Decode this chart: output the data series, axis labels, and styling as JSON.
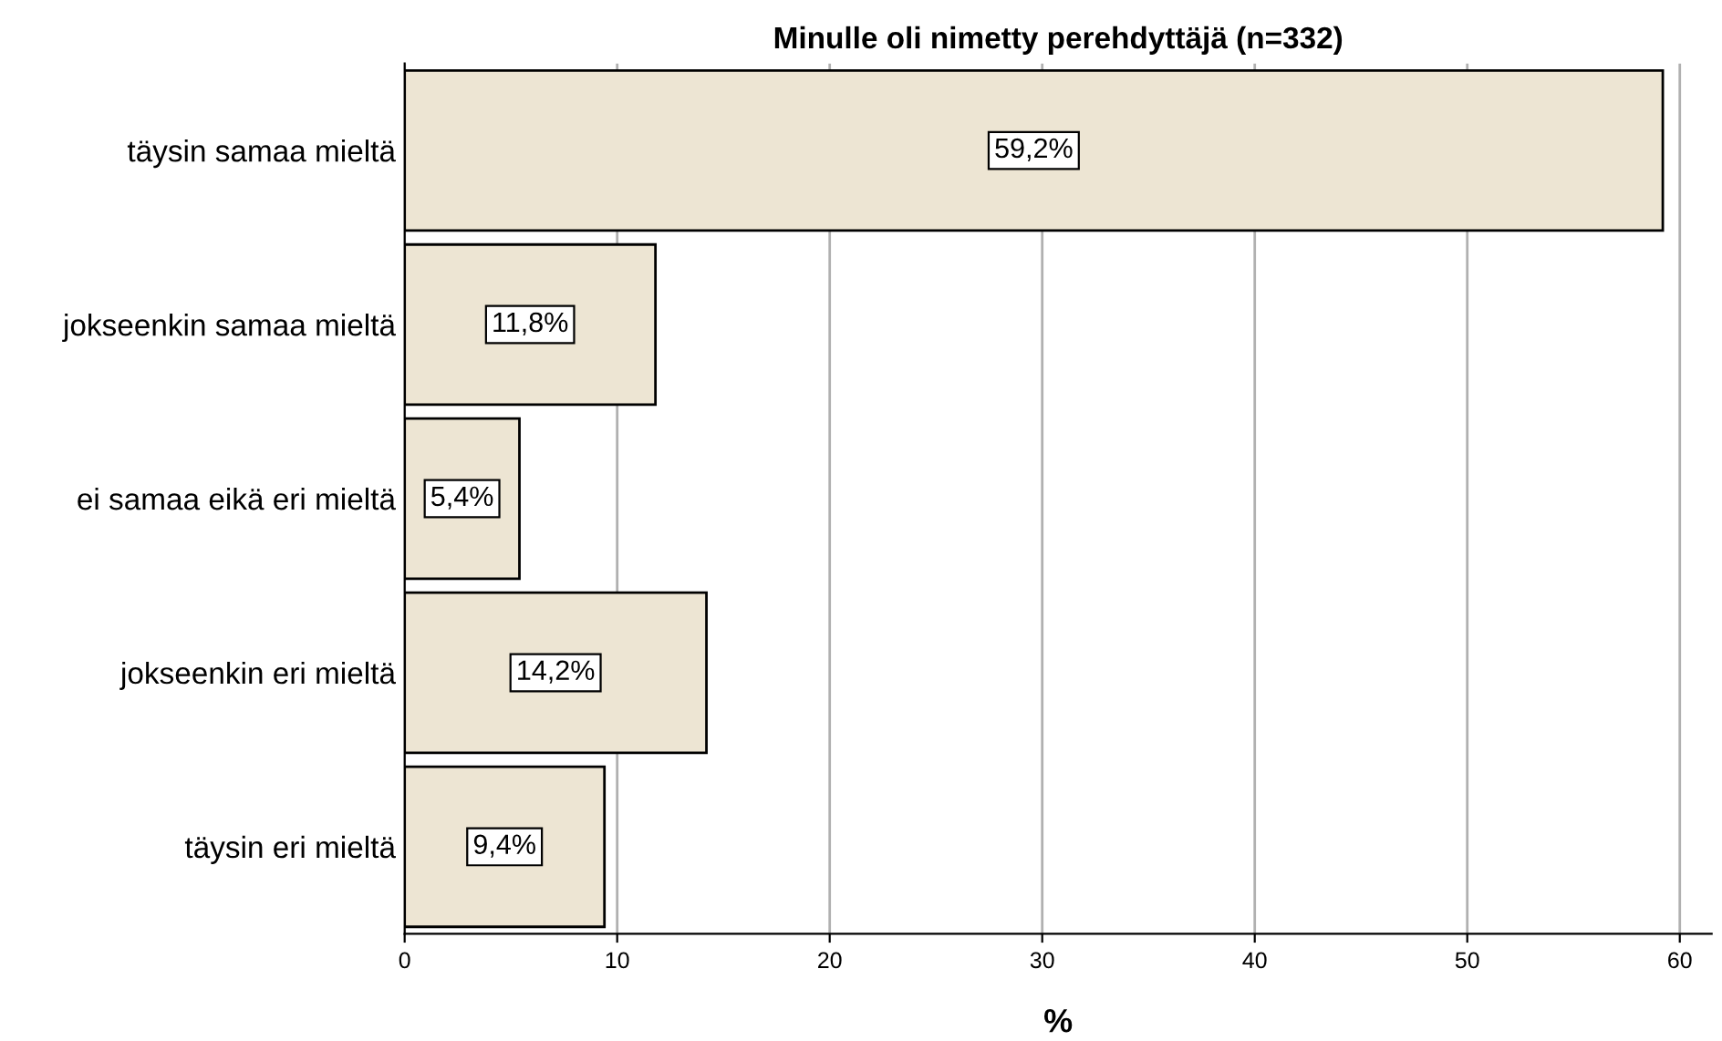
{
  "chart_data": {
    "type": "bar",
    "orientation": "horizontal",
    "title": "Minulle oli nimetty perehdyttäjä (n=332)",
    "xlabel": "%",
    "categories": [
      "täysin samaa mieltä",
      "jokseenkin samaa mieltä",
      "ei samaa eikä eri mieltä",
      "jokseenkin eri mieltä",
      "täysin eri mieltä"
    ],
    "values": [
      59.2,
      11.8,
      5.4,
      14.2,
      9.4
    ],
    "value_labels": [
      "59,2%",
      "11,8%",
      "5,4%",
      "14,2%",
      "9,4%"
    ],
    "color": "#ede5d3",
    "xlim": [
      0,
      61.5
    ],
    "xticks": [
      0,
      10,
      20,
      30,
      40,
      50,
      60
    ],
    "grid": "x"
  }
}
